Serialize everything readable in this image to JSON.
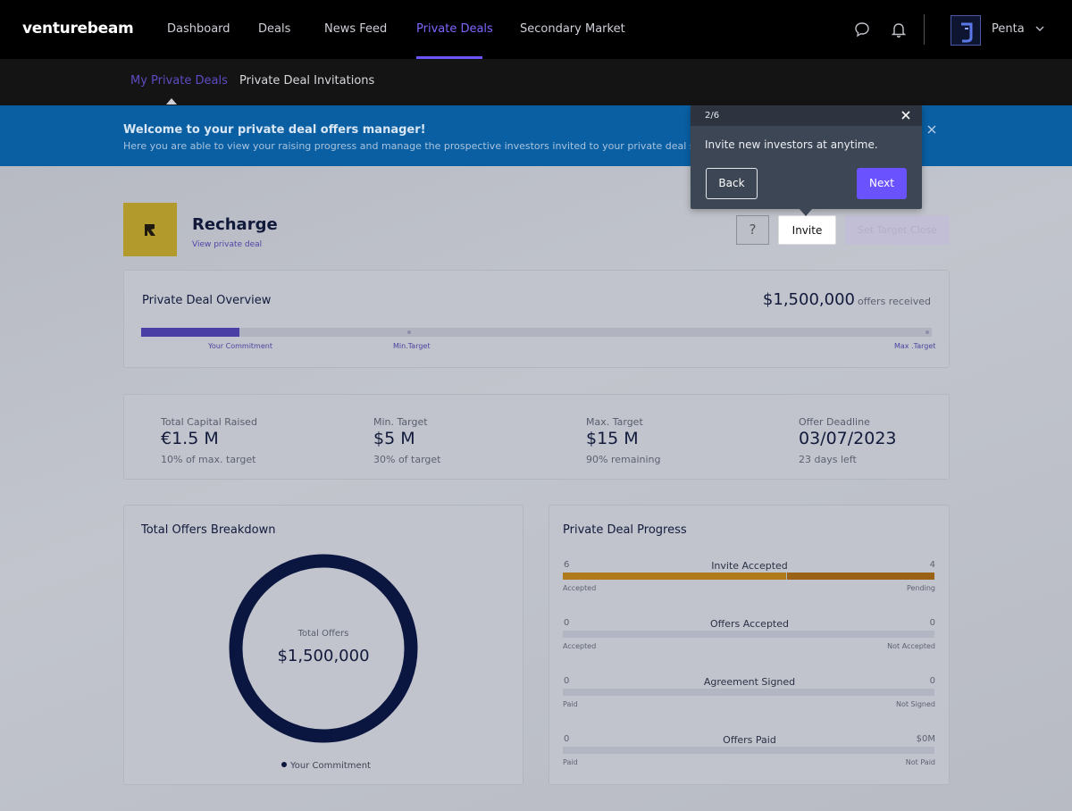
{
  "brand": "venturebeam",
  "nav": {
    "links": [
      {
        "label": "Dashboard"
      },
      {
        "label": "Deals"
      },
      {
        "label": "News Feed"
      },
      {
        "label": "Private Deals",
        "active": true
      },
      {
        "label": "Secondary Market"
      }
    ],
    "user_name": "Penta"
  },
  "subnav": {
    "tabs": [
      {
        "label": "My Private Deals",
        "active": true
      },
      {
        "label": "Private Deal Invitations"
      }
    ]
  },
  "banner": {
    "title": "Welcome to your private deal offers manager!",
    "text": "Here you are able to view your raising progress and manage the prospective investors invited to your private deal syndicate."
  },
  "deal": {
    "name": "Recharge",
    "view_link": "View private deal",
    "help_label": "?",
    "invite_label": "Invite",
    "set_target_label": "Set Target Close"
  },
  "overview": {
    "title": "Private Deal Overview",
    "amount": "$1,500,000",
    "amount_suffix": "offers received",
    "progress_fraction": 0.124,
    "labels": {
      "commitment": "Your Commitment",
      "min": "Min.Target",
      "max": "Max .Target"
    }
  },
  "stats": [
    {
      "label": "Total Capital Raised",
      "value": "€1.5 M",
      "sub": "10% of max. target"
    },
    {
      "label": "Min. Target",
      "value": "$5 M",
      "sub": "30% of target"
    },
    {
      "label": "Max. Target",
      "value": "$15 M",
      "sub": "90% remaining"
    },
    {
      "label": "Offer Deadline",
      "value": "03/07/2023",
      "sub": "23 days left"
    }
  ],
  "breakdown": {
    "title": "Total Offers Breakdown",
    "center_label": "Total Offers",
    "center_value": "$1,500,000",
    "legend": "Your Commitment",
    "donut_color": "#0b1640"
  },
  "progress": {
    "title": "Private Deal Progress",
    "rows": [
      {
        "left": "6",
        "title": "Invite Accepted",
        "right": "4",
        "sub_left": "Accepted",
        "sub_right": "Pending",
        "fill_a": 0.6,
        "fill_b": 0.4
      },
      {
        "left": "0",
        "title": "Offers Accepted",
        "right": "0",
        "sub_left": "Accepted",
        "sub_right": "Not Accepted",
        "fill_a": 0,
        "fill_b": 0
      },
      {
        "left": "0",
        "title": "Agreement Signed",
        "right": "0",
        "sub_left": "Paid",
        "sub_right": "Not Signed",
        "fill_a": 0,
        "fill_b": 0
      },
      {
        "left": "0",
        "title": "Offers Paid",
        "right": "$0M",
        "sub_left": "Paid",
        "sub_right": "Not Paid",
        "fill_a": 0,
        "fill_b": 0
      }
    ],
    "colors": {
      "a": "#b07a1a",
      "b": "#9a6214"
    }
  },
  "tour": {
    "step": "2/6",
    "text": "Invite new investors at anytime.",
    "back_label": "Back",
    "next_label": "Next"
  }
}
